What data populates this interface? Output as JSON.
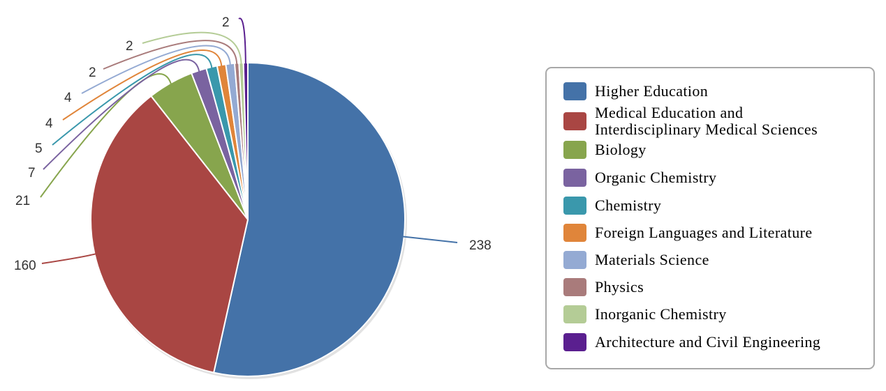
{
  "chart_data": {
    "type": "pie",
    "slices": [
      {
        "label": "Higher Education",
        "value": 238,
        "color": "#4472a8"
      },
      {
        "label": "Medical Education and\nInterdisciplinary Medical Sciences",
        "value": 160,
        "color": "#a94643"
      },
      {
        "label": "Biology",
        "value": 21,
        "color": "#87a54d"
      },
      {
        "label": "Organic Chemistry",
        "value": 7,
        "color": "#7a63a0"
      },
      {
        "label": "Chemistry",
        "value": 5,
        "color": "#3a98ac"
      },
      {
        "label": "Foreign Languages and Literature",
        "value": 4,
        "color": "#e0853a"
      },
      {
        "label": "Materials Science",
        "value": 4,
        "color": "#94aad3"
      },
      {
        "label": "Physics",
        "value": 2,
        "color": "#a97b7b"
      },
      {
        "label": "Inorganic Chemistry",
        "value": 2,
        "color": "#b4cc96"
      },
      {
        "label": "Architecture and Civil Engineering",
        "value": 2,
        "color": "#5a1f8f"
      }
    ],
    "legend_position": "right"
  }
}
